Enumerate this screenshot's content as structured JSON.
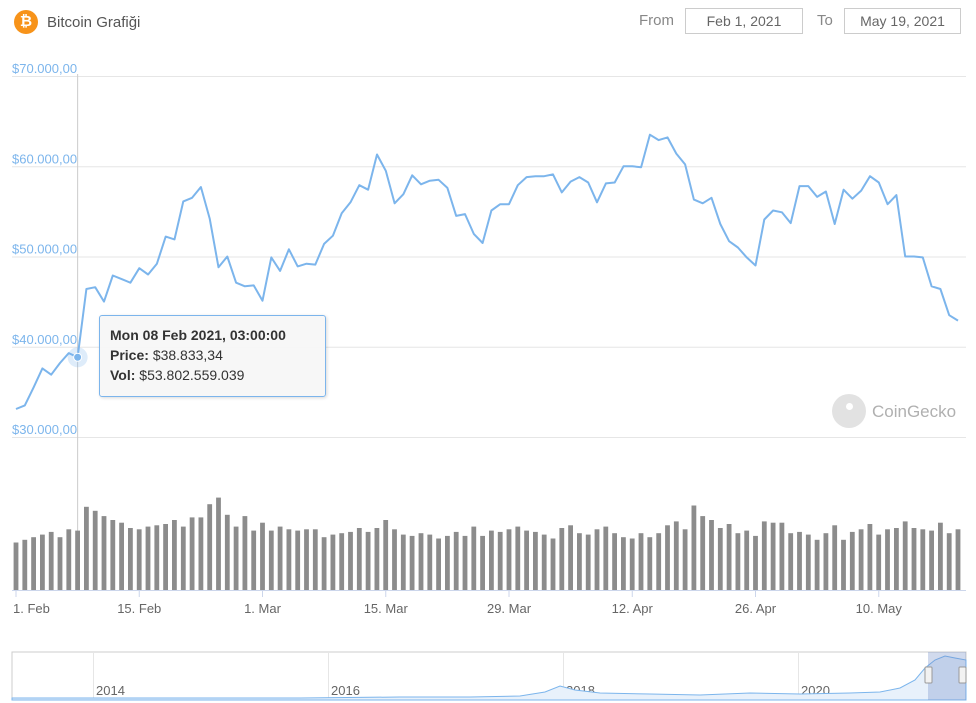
{
  "header": {
    "logo_symbol": "₿",
    "title": "Bitcoin Grafiği",
    "from_label": "From",
    "from_value": "Feb 1, 2021",
    "to_label": "To",
    "to_value": "May 19, 2021"
  },
  "tooltip": {
    "header": "Mon 08 Feb 2021, 03:00:00",
    "price_label": "Price:",
    "price_value": "$38.833,34",
    "vol_label": "Vol:",
    "vol_value": "$53.802.559.039"
  },
  "watermark": "CoinGecko",
  "icons": {
    "logo": "bitcoin-logo-icon",
    "watermark": "coingecko-gecko-icon"
  },
  "colors": {
    "line": "#7cb5ec",
    "volume": "#8c8c8c",
    "bitcoin": "#f7931a"
  },
  "chart_data": [
    {
      "type": "line",
      "start_date": "2021-02-01",
      "end_date": "2021-05-19",
      "interval": "daily",
      "series": [
        {
          "values": [
            33100,
            33500,
            35500,
            37600,
            36900,
            38200,
            39300,
            38833,
            46400,
            46600,
            45000,
            47900,
            47500,
            47100,
            48700,
            48000,
            49200,
            52200,
            51900,
            56100,
            56500,
            57700,
            54200,
            48800,
            50000,
            47100,
            46700,
            46800,
            45100,
            49900,
            48400,
            50800,
            48900,
            49200,
            49100,
            51400,
            52300,
            54800,
            56000,
            57900,
            57400,
            61300,
            59500,
            55900,
            56900,
            59000,
            58000,
            58400,
            58500,
            57600,
            54500,
            54700,
            52500,
            51500,
            55100,
            55800,
            55800,
            57900,
            58800,
            58900,
            58900,
            59100,
            57100,
            58300,
            58800,
            58200,
            56000,
            58100,
            58200,
            60000,
            60000,
            59900,
            63500,
            62900,
            63200,
            61400,
            60200,
            56300,
            55900,
            56500,
            53600,
            51700,
            51000,
            49900,
            49000,
            54100,
            55100,
            54900,
            53700,
            57800,
            57800,
            56600,
            57200,
            53600,
            57400,
            56400,
            57300,
            58900,
            58200,
            55800,
            56800,
            50000,
            50000,
            49900,
            46700,
            46400,
            43500,
            42900
          ],
          "color": "#7cb5ec"
        }
      ],
      "ylim": [
        30000,
        70000
      ],
      "y_ticks": [
        "$30.000,00",
        "$40.000,00",
        "$50.000,00",
        "$60.000,00",
        "$70.000,00"
      ],
      "y_tick_values": [
        30000,
        40000,
        50000,
        60000,
        70000
      ],
      "highlight": {
        "date": "2021-02-08",
        "price": 38833.34,
        "volume": 53802559039
      }
    },
    {
      "type": "bar",
      "series": [
        {
          "values": [
            36,
            38,
            40,
            42,
            44,
            40,
            46,
            45,
            63,
            60,
            56,
            53,
            51,
            47,
            46,
            48,
            49,
            50,
            53,
            48,
            55,
            55,
            65,
            70,
            57,
            48,
            56,
            45,
            51,
            45,
            48,
            46,
            45,
            46,
            46,
            40,
            42,
            43,
            44,
            47,
            44,
            47,
            53,
            46,
            42,
            41,
            43,
            42,
            39,
            41,
            44,
            41,
            48,
            41,
            45,
            44,
            46,
            48,
            45,
            44,
            42,
            39,
            47,
            49,
            43,
            42,
            46,
            48,
            43,
            40,
            39,
            43,
            40,
            43,
            49,
            52,
            46,
            64,
            56,
            53,
            47,
            50,
            43,
            45,
            41,
            52,
            51,
            51,
            43,
            44,
            42,
            38,
            43,
            49,
            38,
            44,
            46,
            50,
            42,
            46,
            47,
            52,
            47,
            46,
            45,
            51,
            43,
            46
          ]
        }
      ]
    },
    {
      "type": "area",
      "x_ticks": [
        "2014",
        "2016",
        "2018",
        "2020"
      ]
    }
  ],
  "x_ticks": [
    {
      "date": "2021-02-01",
      "label": "1. Feb"
    },
    {
      "date": "2021-02-15",
      "label": "15. Feb"
    },
    {
      "date": "2021-03-01",
      "label": "1. Mar"
    },
    {
      "date": "2021-03-15",
      "label": "15. Mar"
    },
    {
      "date": "2021-03-29",
      "label": "29. Mar"
    },
    {
      "date": "2021-04-12",
      "label": "12. Apr"
    },
    {
      "date": "2021-04-26",
      "label": "26. Apr"
    },
    {
      "date": "2021-05-10",
      "label": "10. May"
    }
  ]
}
